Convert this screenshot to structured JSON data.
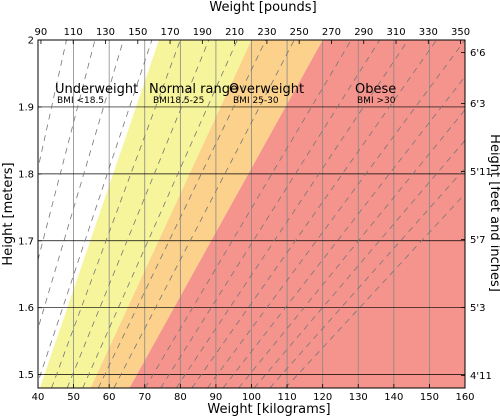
{
  "chart_data": {
    "type": "area",
    "title": "",
    "xlabel": "Weight [kilograms]",
    "ylabel": "Height [meters]",
    "x2label": "Weight [pounds]",
    "y2label": "Height [feet and inches]",
    "xlim": [
      40,
      160
    ],
    "ylim": [
      1.48,
      2.0
    ],
    "grid": true,
    "x_ticks": [
      40,
      50,
      60,
      70,
      80,
      90,
      100,
      110,
      120,
      130,
      140,
      150,
      160
    ],
    "y_ticks": [
      1.5,
      1.6,
      1.7,
      1.8,
      1.9,
      2
    ],
    "x2_ticks": [
      {
        "label": "90",
        "lb": 90
      },
      {
        "label": "110",
        "lb": 110
      },
      {
        "label": "130",
        "lb": 130
      },
      {
        "label": "150",
        "lb": 150
      },
      {
        "label": "170",
        "lb": 170
      },
      {
        "label": "190",
        "lb": 190
      },
      {
        "label": "210",
        "lb": 210
      },
      {
        "label": "230",
        "lb": 230
      },
      {
        "label": "250",
        "lb": 250
      },
      {
        "label": "270",
        "lb": 270
      },
      {
        "label": "290",
        "lb": 290
      },
      {
        "label": "310",
        "lb": 310
      },
      {
        "label": "330",
        "lb": 330
      },
      {
        "label": "350",
        "lb": 350
      }
    ],
    "y2_ticks": [
      {
        "label": "4'11",
        "inches": 59
      },
      {
        "label": "5'3",
        "inches": 63
      },
      {
        "label": "5'7",
        "inches": 67
      },
      {
        "label": "5'11",
        "inches": 71
      },
      {
        "label": "6'3",
        "inches": 75
      },
      {
        "label": "6'6",
        "inches": 78
      }
    ],
    "zones": [
      {
        "name": "Underweight",
        "range": "BMI <18.5",
        "bmi_low": 0,
        "bmi_high": 18.5,
        "color": "#ffffff"
      },
      {
        "name": "Normal range",
        "range": "BMI18.5-25",
        "bmi_low": 18.5,
        "bmi_high": 25,
        "color": "#f7f59b"
      },
      {
        "name": "Overweight",
        "range": "BMI 25-30",
        "bmi_low": 25,
        "bmi_high": 30,
        "color": "#fbd18b"
      },
      {
        "name": "Obese",
        "range": "BMI >30",
        "bmi_low": 30,
        "bmi_high": 1000,
        "color": "#f4948c"
      }
    ],
    "bmi_guides": [
      12,
      14,
      16,
      18,
      20,
      22,
      24,
      26,
      28,
      32,
      34,
      36,
      38,
      40,
      42,
      44,
      46,
      48,
      50
    ],
    "colors": {
      "grid": "#888888",
      "guide": "#777777",
      "frame": "#000000"
    }
  }
}
